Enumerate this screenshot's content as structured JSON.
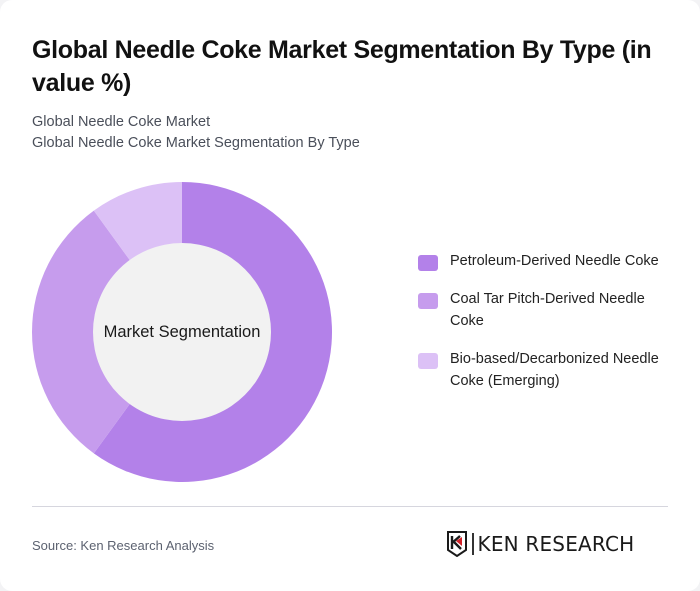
{
  "header": {
    "title": "Global Needle Coke Market Segmentation By Type (in value %)",
    "subtitle_1": "Global Needle Coke Market",
    "subtitle_2": "Global Needle Coke Market Segmentation By Type"
  },
  "chart": {
    "center_label": "Market Segmentation"
  },
  "legend": {
    "items": [
      {
        "label": "Petroleum-Derived Needle Coke",
        "color": "#b381e9"
      },
      {
        "label": "Coal Tar Pitch-Derived Needle Coke",
        "color": "#c69ced"
      },
      {
        "label": "Bio-based/Decarbonized Needle Coke (Emerging)",
        "color": "#dcc1f6"
      }
    ]
  },
  "footer": {
    "source": "Source: Ken Research Analysis",
    "logo_text": "KEN RESEARCH"
  },
  "colors": {
    "hole": "#f2f2f2",
    "accent_red": "#d2232a"
  },
  "chart_data": {
    "type": "pie",
    "variant": "donut",
    "title": "Global Needle Coke Market Segmentation By Type (in value %)",
    "center_label": "Market Segmentation",
    "categories": [
      "Petroleum-Derived Needle Coke",
      "Coal Tar Pitch-Derived Needle Coke",
      "Bio-based/Decarbonized Needle Coke (Emerging)"
    ],
    "values": [
      60,
      30,
      10
    ],
    "unit": "%",
    "legend_position": "right",
    "start_angle": "12 o'clock, clockwise"
  }
}
